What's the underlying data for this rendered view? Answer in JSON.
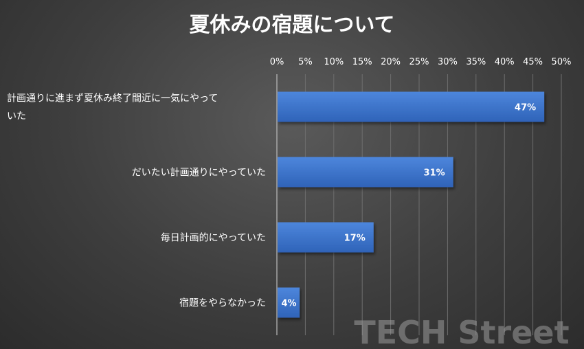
{
  "chart_data": {
    "type": "bar",
    "orientation": "horizontal",
    "title": "夏休みの宿題について",
    "categories": [
      "計画通りに進まず夏休み終了間近に一気にやっていた",
      "だいたい計画通りにやっていた",
      "毎日計画的にやっていた",
      "宿題をやらなかった"
    ],
    "values": [
      47,
      31,
      17,
      4
    ],
    "data_labels": [
      "47%",
      "31%",
      "17%",
      "4%"
    ],
    "xlim": [
      0,
      50
    ],
    "x_ticks": [
      "0%",
      "5%",
      "10%",
      "15%",
      "20%",
      "25%",
      "30%",
      "35%",
      "40%",
      "45%",
      "50%"
    ],
    "x_axis_position": "top",
    "grid": true,
    "legend": "none",
    "bar_color": "#3a72c9",
    "background_color": "#404040"
  },
  "watermark": "TECH Street"
}
